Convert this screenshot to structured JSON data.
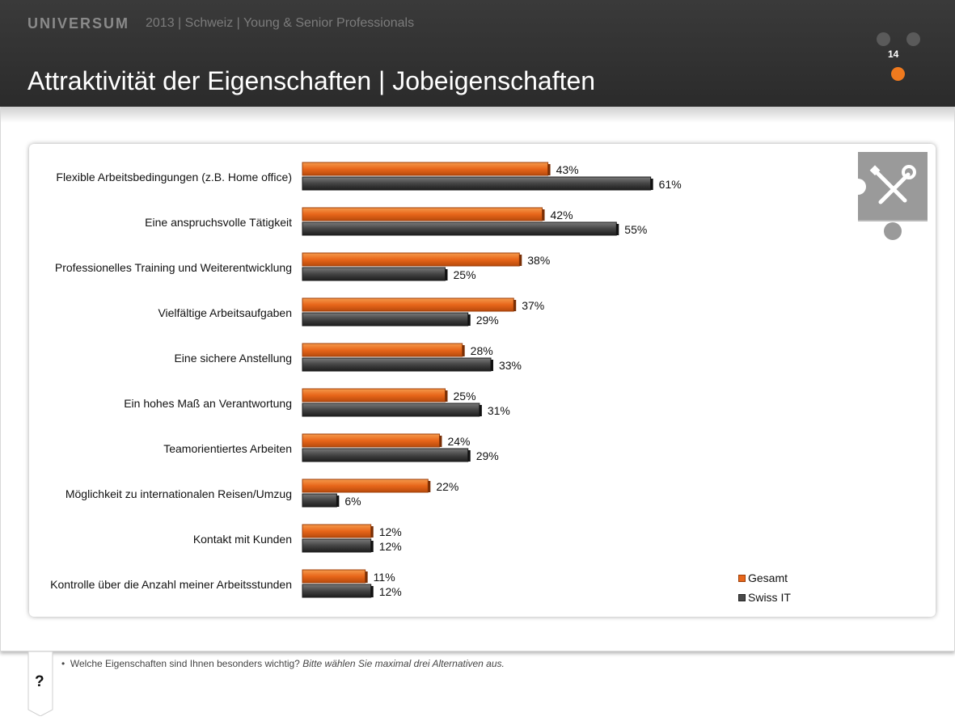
{
  "header": {
    "brand": "UNIVERSUM",
    "subtitle": "2013 | Schweiz | Young & Senior Professionals",
    "title": "Attraktivität der Eigenschaften | Jobeigenschaften",
    "page_number": "14"
  },
  "colors": {
    "accent": "#f07a1e",
    "gesamt": "#e8661a",
    "swiss_it": "#4a4a4a"
  },
  "icons": {
    "puzzle": "tools-puzzle-icon",
    "help": "question-icon"
  },
  "chart_data": {
    "type": "bar",
    "orientation": "horizontal",
    "categories": [
      "Flexible Arbeitsbedingungen (z.B. Home office)",
      "Eine anspruchsvolle Tätigkeit",
      "Professionelles Training und Weiterentwicklung",
      "Vielfältige Arbeitsaufgaben",
      "Eine sichere Anstellung",
      "Ein hohes Maß an Verantwortung",
      "Teamorientiertes Arbeiten",
      "Möglichkeit zu internationalen Reisen/Umzug",
      "Kontakt mit Kunden",
      "Kontrolle über die Anzahl meiner Arbeitsstunden"
    ],
    "series": [
      {
        "name": "Gesamt",
        "values": [
          43,
          42,
          38,
          37,
          28,
          25,
          24,
          22,
          12,
          11
        ],
        "labels": [
          "43%",
          "42%",
          "38%",
          "37%",
          "28%",
          "25%",
          "24%",
          "22%",
          "12%",
          "11%"
        ]
      },
      {
        "name": "Swiss IT",
        "values": [
          61,
          55,
          25,
          29,
          33,
          31,
          29,
          6,
          12,
          12
        ],
        "labels": [
          "61%",
          "55%",
          "25%",
          "29%",
          "33%",
          "31%",
          "29%",
          "6%",
          "12%",
          "12%"
        ]
      }
    ],
    "unit": "%",
    "xlim": [
      0,
      100
    ],
    "grid": false,
    "legend": "bottom-right"
  },
  "footnote": {
    "bullet": "•",
    "question": "Welche Eigenschaften sind Ihnen besonders wichtig?",
    "instruction": "Bitte wählen Sie maximal drei Alternativen aus."
  },
  "help": {
    "label": "?"
  }
}
